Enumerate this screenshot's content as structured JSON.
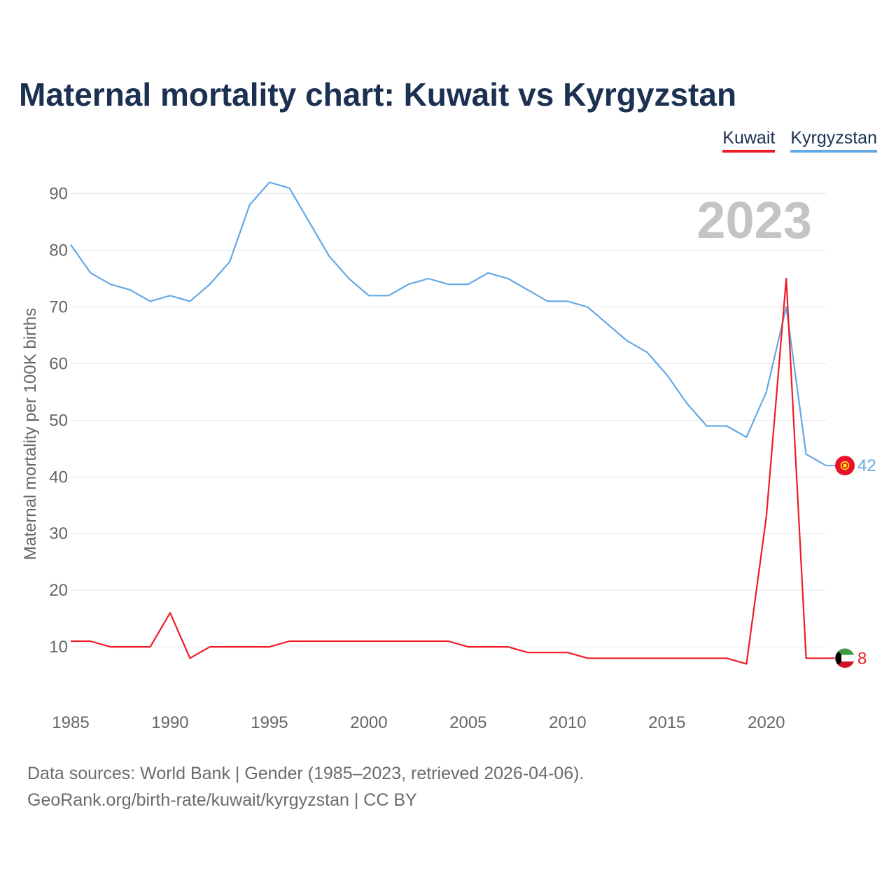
{
  "title": "Maternal mortality chart: Kuwait vs Kyrgyzstan",
  "legend": [
    {
      "label": "Kuwait",
      "color": "#ee1c25"
    },
    {
      "label": "Kyrgyzstan",
      "color": "#63a9e6"
    }
  ],
  "year_watermark": "2023",
  "footer": {
    "source": "Data sources: World Bank | Gender (1985–2023, retrieved 2026-04-06).",
    "credit": "GeoRank.org/birth-rate/kuwait/kyrgyzstan | CC BY"
  },
  "chart_data": {
    "type": "line",
    "title": "Maternal mortality chart: Kuwait vs Kyrgyzstan",
    "xlabel": "",
    "ylabel": "Maternal mortality per 100K births",
    "xlim": [
      1985,
      2023
    ],
    "ylim": [
      0,
      97
    ],
    "y_ticks": [
      10,
      20,
      30,
      40,
      50,
      60,
      70,
      80,
      90
    ],
    "x_ticks": [
      1985,
      1990,
      1995,
      2000,
      2005,
      2010,
      2015,
      2020
    ],
    "grid": true,
    "x": [
      1985,
      1986,
      1987,
      1988,
      1989,
      1990,
      1991,
      1992,
      1993,
      1994,
      1995,
      1996,
      1997,
      1998,
      1999,
      2000,
      2001,
      2002,
      2003,
      2004,
      2005,
      2006,
      2007,
      2008,
      2009,
      2010,
      2011,
      2012,
      2013,
      2014,
      2015,
      2016,
      2017,
      2018,
      2019,
      2020,
      2021,
      2022,
      2023
    ],
    "series": [
      {
        "name": "Kuwait",
        "color": "#ee1c25",
        "end_label": "8",
        "flag": "kuwait-flag",
        "values": [
          11,
          11,
          10,
          10,
          10,
          16,
          8,
          10,
          10,
          10,
          10,
          11,
          11,
          11,
          11,
          11,
          11,
          11,
          11,
          11,
          10,
          10,
          10,
          9,
          9,
          9,
          8,
          8,
          8,
          8,
          8,
          8,
          8,
          8,
          7,
          33,
          75,
          8,
          8
        ]
      },
      {
        "name": "Kyrgyzstan",
        "color": "#63a9e6",
        "end_label": "42",
        "flag": "kyrgyzstan-flag",
        "values": [
          81,
          76,
          74,
          73,
          71,
          72,
          71,
          74,
          78,
          88,
          92,
          91,
          85,
          79,
          75,
          72,
          72,
          74,
          75,
          74,
          74,
          76,
          75,
          73,
          71,
          71,
          70,
          67,
          64,
          62,
          58,
          53,
          49,
          49,
          47,
          55,
          70,
          44,
          42
        ]
      }
    ]
  }
}
